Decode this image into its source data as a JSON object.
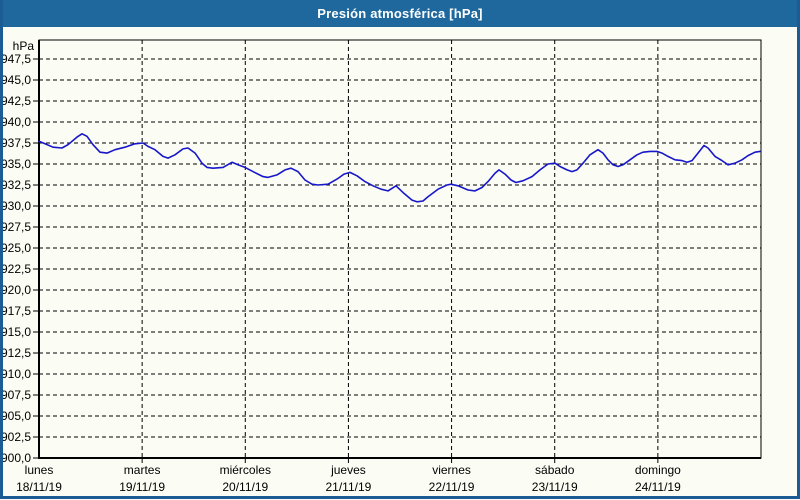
{
  "window": {
    "title": "Presión atmosférica [hPa]"
  },
  "colors": {
    "titlebar": "#1E689E",
    "frame": "#1B5C94",
    "background": "#FBFCF3",
    "grid": "#000000",
    "text": "#000000",
    "title_text": "#FFFFFF",
    "line": "#1717C9"
  },
  "chart_data": {
    "type": "line",
    "title": "Presión atmosférica [hPa]",
    "ylabel": "hPa",
    "ylim": [
      900,
      949.8
    ],
    "grid": true,
    "legend": "none",
    "yticks": [
      {
        "v": 947.5,
        "label": "947,5"
      },
      {
        "v": 945.0,
        "label": "945,0"
      },
      {
        "v": 942.5,
        "label": "942,5"
      },
      {
        "v": 940.0,
        "label": "940,0"
      },
      {
        "v": 937.5,
        "label": "937,5"
      },
      {
        "v": 935.0,
        "label": "935,0"
      },
      {
        "v": 932.5,
        "label": "932,5"
      },
      {
        "v": 930.0,
        "label": "930,0"
      },
      {
        "v": 927.5,
        "label": "927,5"
      },
      {
        "v": 925.0,
        "label": "925,0"
      },
      {
        "v": 922.5,
        "label": "922,5"
      },
      {
        "v": 920.0,
        "label": "920,0"
      },
      {
        "v": 917.5,
        "label": "917,5"
      },
      {
        "v": 915.0,
        "label": "915,0"
      },
      {
        "v": 912.5,
        "label": "912,5"
      },
      {
        "v": 910.0,
        "label": "910,0"
      },
      {
        "v": 907.5,
        "label": "907,5"
      },
      {
        "v": 905.0,
        "label": "905,0"
      },
      {
        "v": 902.5,
        "label": "902,5"
      },
      {
        "v": 900.0,
        "label": "900,0"
      }
    ],
    "x_days": [
      {
        "name": "lunes",
        "date": "18/11/19"
      },
      {
        "name": "martes",
        "date": "19/11/19"
      },
      {
        "name": "miércoles",
        "date": "20/11/19"
      },
      {
        "name": "jueves",
        "date": "21/11/19"
      },
      {
        "name": "viernes",
        "date": "22/11/19"
      },
      {
        "name": "sábado",
        "date": "23/11/19"
      },
      {
        "name": "domingo",
        "date": "24/11/19"
      }
    ],
    "series": [
      {
        "name": "Presión atmosférica",
        "color": "#1717C9",
        "points": [
          [
            0.0,
            937.7
          ],
          [
            0.058,
            937.4
          ],
          [
            0.136,
            937.0
          ],
          [
            0.223,
            936.9
          ],
          [
            0.281,
            937.3
          ],
          [
            0.368,
            938.2
          ],
          [
            0.417,
            938.6
          ],
          [
            0.465,
            938.3
          ],
          [
            0.524,
            937.3
          ],
          [
            0.591,
            936.4
          ],
          [
            0.659,
            936.3
          ],
          [
            0.737,
            936.7
          ],
          [
            0.834,
            937.0
          ],
          [
            0.931,
            937.4
          ],
          [
            1.008,
            937.5
          ],
          [
            1.057,
            937.1
          ],
          [
            1.125,
            936.7
          ],
          [
            1.202,
            935.9
          ],
          [
            1.251,
            935.7
          ],
          [
            1.319,
            936.1
          ],
          [
            1.396,
            936.8
          ],
          [
            1.445,
            936.9
          ],
          [
            1.513,
            936.3
          ],
          [
            1.58,
            935.1
          ],
          [
            1.629,
            934.6
          ],
          [
            1.687,
            934.5
          ],
          [
            1.784,
            934.6
          ],
          [
            1.871,
            935.2
          ],
          [
            1.929,
            934.9
          ],
          [
            1.997,
            934.6
          ],
          [
            2.075,
            934.1
          ],
          [
            2.172,
            933.5
          ],
          [
            2.22,
            933.4
          ],
          [
            2.307,
            933.7
          ],
          [
            2.385,
            934.3
          ],
          [
            2.443,
            934.5
          ],
          [
            2.511,
            934.1
          ],
          [
            2.579,
            933.1
          ],
          [
            2.647,
            932.6
          ],
          [
            2.705,
            932.5
          ],
          [
            2.802,
            932.6
          ],
          [
            2.889,
            933.2
          ],
          [
            2.957,
            933.8
          ],
          [
            3.015,
            934.0
          ],
          [
            3.083,
            933.6
          ],
          [
            3.161,
            932.9
          ],
          [
            3.238,
            932.4
          ],
          [
            3.316,
            932.0
          ],
          [
            3.384,
            931.8
          ],
          [
            3.461,
            932.4
          ],
          [
            3.539,
            931.5
          ],
          [
            3.616,
            930.7
          ],
          [
            3.665,
            930.5
          ],
          [
            3.723,
            930.6
          ],
          [
            3.771,
            931.1
          ],
          [
            3.868,
            932.0
          ],
          [
            3.956,
            932.5
          ],
          [
            3.994,
            932.6
          ],
          [
            4.062,
            932.4
          ],
          [
            4.159,
            931.9
          ],
          [
            4.227,
            931.8
          ],
          [
            4.295,
            932.2
          ],
          [
            4.353,
            932.9
          ],
          [
            4.421,
            933.9
          ],
          [
            4.46,
            934.3
          ],
          [
            4.518,
            933.8
          ],
          [
            4.576,
            933.1
          ],
          [
            4.624,
            932.8
          ],
          [
            4.692,
            933.0
          ],
          [
            4.78,
            933.5
          ],
          [
            4.857,
            934.3
          ],
          [
            4.935,
            935.0
          ],
          [
            5.003,
            935.1
          ],
          [
            5.051,
            934.7
          ],
          [
            5.119,
            934.3
          ],
          [
            5.168,
            934.1
          ],
          [
            5.216,
            934.3
          ],
          [
            5.274,
            935.1
          ],
          [
            5.342,
            936.1
          ],
          [
            5.42,
            936.7
          ],
          [
            5.468,
            936.3
          ],
          [
            5.517,
            935.5
          ],
          [
            5.565,
            934.9
          ],
          [
            5.614,
            934.7
          ],
          [
            5.662,
            934.9
          ],
          [
            5.73,
            935.5
          ],
          [
            5.798,
            936.1
          ],
          [
            5.856,
            936.4
          ],
          [
            5.924,
            936.5
          ],
          [
            5.992,
            936.5
          ],
          [
            6.04,
            936.3
          ],
          [
            6.098,
            935.9
          ],
          [
            6.166,
            935.5
          ],
          [
            6.234,
            935.4
          ],
          [
            6.283,
            935.2
          ],
          [
            6.331,
            935.4
          ],
          [
            6.389,
            936.3
          ],
          [
            6.447,
            937.2
          ],
          [
            6.486,
            936.9
          ],
          [
            6.554,
            935.9
          ],
          [
            6.622,
            935.4
          ],
          [
            6.68,
            934.9
          ],
          [
            6.748,
            935.1
          ],
          [
            6.816,
            935.5
          ],
          [
            6.874,
            936.0
          ],
          [
            6.942,
            936.4
          ],
          [
            6.99,
            936.5
          ]
        ]
      }
    ]
  }
}
